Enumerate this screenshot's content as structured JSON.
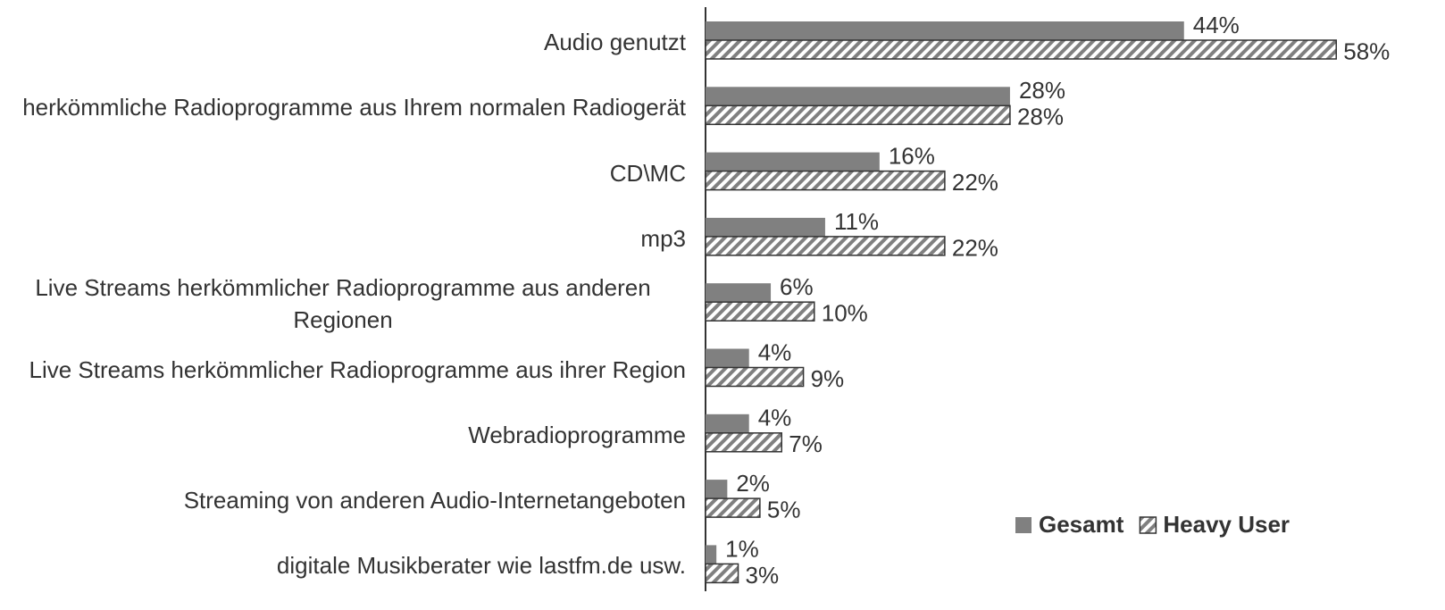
{
  "chart_data": {
    "type": "bar",
    "orientation": "horizontal",
    "categories": [
      "Audio genutzt",
      "herkömmliche Radioprogramme aus Ihrem normalen Radiogerät",
      "CD\\MC",
      "mp3",
      "Live Streams herkömmlicher Radioprogramme aus anderen Regionen",
      "Live Streams herkömmlicher Radioprogramme aus ihrer Region",
      "Webradioprogramme",
      "Streaming von anderen Audio-Internetangeboten",
      "digitale Musikberater wie lastfm.de usw."
    ],
    "series": [
      {
        "name": "Gesamt",
        "color": "#808080",
        "values": [
          44,
          28,
          16,
          11,
          6,
          4,
          4,
          2,
          1
        ],
        "value_labels": [
          "44%",
          "28%",
          "16%",
          "11%",
          "6%",
          "4%",
          "4%",
          "2%",
          "1%"
        ]
      },
      {
        "name": "Heavy User",
        "color": "#808080",
        "pattern": "hatch",
        "values": [
          58,
          28,
          22,
          22,
          10,
          9,
          7,
          5,
          3
        ],
        "value_labels": [
          "58%",
          "28%",
          "22%",
          "22%",
          "10%",
          "9%",
          "7%",
          "5%",
          "3%"
        ]
      }
    ],
    "xlim": [
      0,
      68
    ],
    "legend": "lower right"
  }
}
